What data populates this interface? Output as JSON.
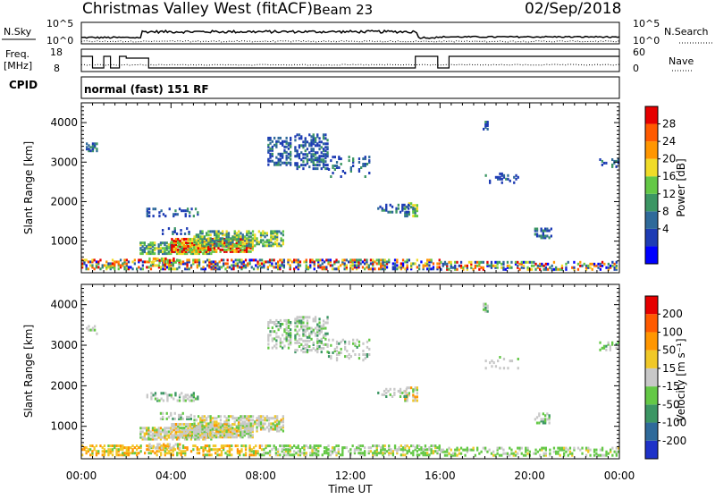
{
  "header": {
    "station": "Christmas Valley West (fitACF)",
    "beam": "Beam 23",
    "date": "02/Sep/2018"
  },
  "noise_panel": {
    "left_label": "N.Sky",
    "left_ticks": [
      "10^5",
      "10^0"
    ],
    "right_label": "N.Search",
    "right_ticks": [
      "10^5",
      "10^0"
    ]
  },
  "freq_panel": {
    "left_label_1": "Freq.",
    "left_label_2": "[MHz]",
    "left_ticks": [
      "18",
      "8"
    ],
    "right_label": "Nave",
    "right_ticks": [
      "60",
      "0"
    ]
  },
  "cpid": {
    "label": "CPID",
    "text": "normal (fast) 151 RF"
  },
  "chart_data": [
    {
      "type": "heatmap",
      "title": "Power",
      "xlabel": "",
      "ylabel": "Slant Range [km]",
      "x_ticks": [
        "00:00",
        "04:00",
        "08:00",
        "12:00",
        "16:00",
        "20:00",
        "00:00"
      ],
      "y_ticks": [
        "1000",
        "2000",
        "3000",
        "4000"
      ],
      "ylim": [
        200,
        4500
      ],
      "grid": false,
      "colorbar": {
        "label": "Power [dB]",
        "ticks": [
          "28",
          "24",
          "20",
          "16",
          "12",
          "8",
          "4"
        ],
        "colors": [
          "#0000ff",
          "#1e3cb4",
          "#2f6a9a",
          "#3c9664",
          "#64c846",
          "#f0dc28",
          "#ff9600",
          "#ff5a00",
          "#e60000"
        ]
      }
    },
    {
      "type": "heatmap",
      "title": "Velocity",
      "xlabel": "Time UT",
      "ylabel": "Slant Range [km]",
      "x_ticks": [
        "00:00",
        "04:00",
        "08:00",
        "12:00",
        "16:00",
        "20:00",
        "00:00"
      ],
      "y_ticks": [
        "1000",
        "2000",
        "3000",
        "4000"
      ],
      "ylim": [
        200,
        4500
      ],
      "grid": false,
      "colorbar": {
        "label": "Velocity [m s⁻¹]",
        "ticks": [
          "200",
          "100",
          "50",
          "15",
          "-15",
          "-50",
          "-100",
          "-200"
        ],
        "colors": [
          "#1e32c8",
          "#2f6a9a",
          "#3c9664",
          "#64c846",
          "#c8c8c8",
          "#f0c828",
          "#ff9600",
          "#ff5a00",
          "#e60000"
        ]
      }
    }
  ]
}
